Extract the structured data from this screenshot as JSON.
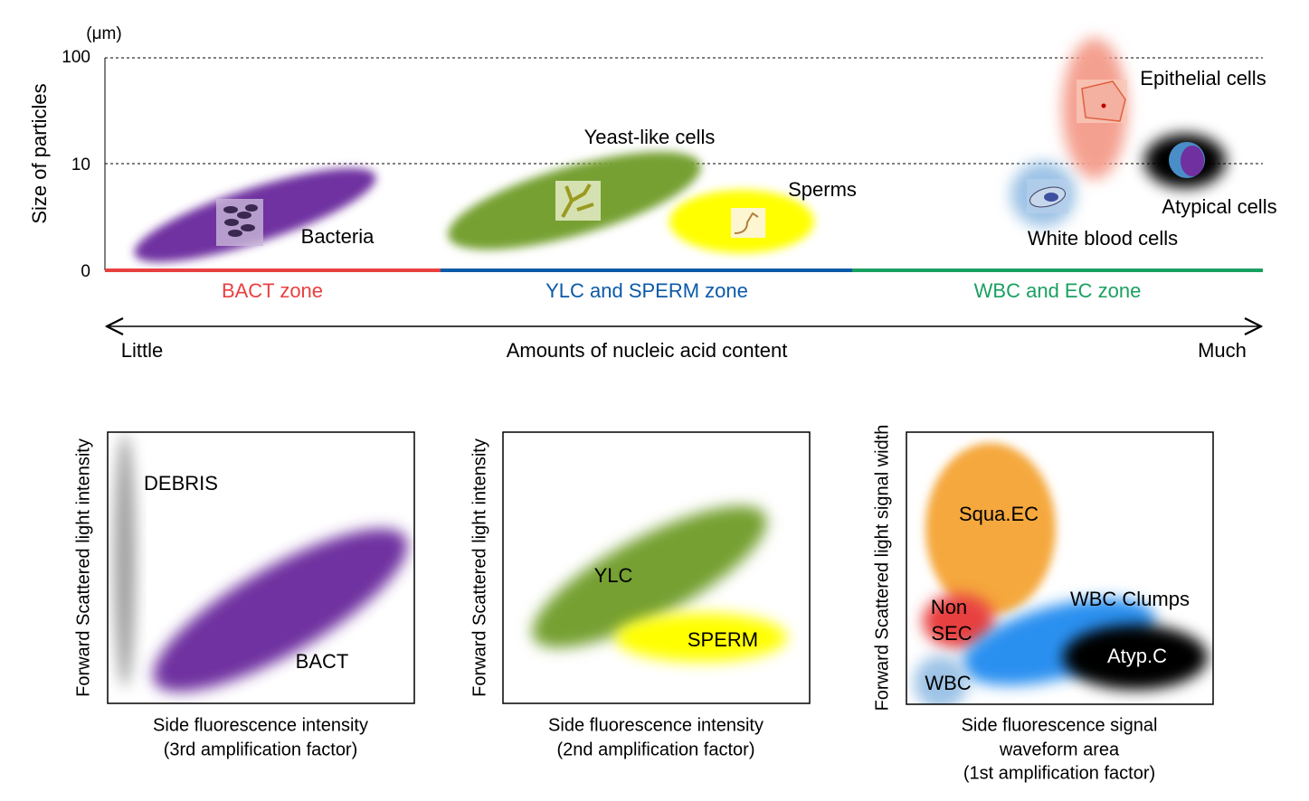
{
  "top": {
    "unit": "(μm)",
    "y_label": "Size of particles",
    "ticks": [
      "100",
      "10",
      "0"
    ],
    "clusters": {
      "bacteria": "Bacteria",
      "yeast": "Yeast-like cells",
      "sperms": "Sperms",
      "epithelial": "Epithelial cells",
      "atypical": "Atypical cells",
      "wbc": "White blood cells"
    },
    "zones": [
      "BACT zone",
      "YLC and SPERM zone",
      "WBC and EC zone"
    ],
    "axis": {
      "left": "Little",
      "title": "Amounts of nucleic acid content",
      "right": "Much"
    }
  },
  "panels": [
    {
      "y_label": "Forward Scattered light intensity",
      "x_label": [
        "Side fluorescence intensity",
        "(3rd  amplification factor)"
      ],
      "clusters": [
        "DEBRIS",
        "BACT"
      ]
    },
    {
      "y_label": "Forward Scattered light intensity",
      "x_label": [
        "Side fluorescence intensity",
        "(2nd amplification factor)"
      ],
      "clusters": [
        "YLC",
        "SPERM"
      ]
    },
    {
      "y_label": "Forward Scattered light signal width",
      "x_label": [
        "Side fluorescence signal",
        "waveform area",
        "(1st amplification factor)"
      ],
      "clusters": [
        "Squa.EC",
        "WBC Clumps",
        "Atyp.C",
        "WBC"
      ],
      "non_sec": [
        "Non",
        "SEC"
      ]
    }
  ]
}
